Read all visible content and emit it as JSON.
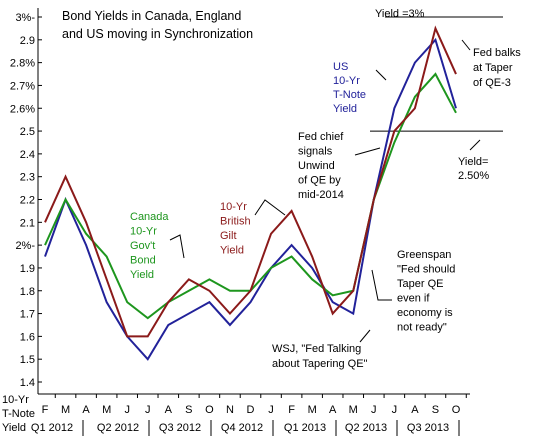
{
  "chart_data": {
    "type": "line",
    "title": [
      "Bond Yields in Canada, England",
      "and US moving in Synchronization"
    ],
    "y_label": [
      "10-Yr",
      "T-Note",
      "Yield"
    ],
    "categories": [
      "F",
      "M",
      "A",
      "M",
      "J",
      "J",
      "A",
      "S",
      "O",
      "N",
      "D",
      "J",
      "F",
      "M",
      "A",
      "M",
      "J",
      "J",
      "A",
      "S",
      "O"
    ],
    "x_groups": [
      "Q1 2012",
      "Q2 2012",
      "Q3 2012",
      "Q4 2012",
      "Q1 2013",
      "Q2 2013",
      "Q3 2013"
    ],
    "series": [
      {
        "name": "US",
        "color": "#22229a",
        "values": [
          1.95,
          2.2,
          2.0,
          1.75,
          1.6,
          1.5,
          1.65,
          1.7,
          1.75,
          1.65,
          1.75,
          1.9,
          2.0,
          1.9,
          1.75,
          1.7,
          2.2,
          2.6,
          2.8,
          2.9,
          2.6
        ]
      },
      {
        "name": "Canada",
        "color": "#1e961e",
        "values": [
          2.0,
          2.2,
          2.05,
          1.95,
          1.75,
          1.68,
          1.75,
          1.8,
          1.85,
          1.8,
          1.8,
          1.9,
          1.95,
          1.85,
          1.78,
          1.8,
          2.2,
          2.45,
          2.65,
          2.75,
          2.58
        ]
      },
      {
        "name": "UK",
        "color": "#8b1a1a",
        "values": [
          2.1,
          2.3,
          2.1,
          1.85,
          1.6,
          1.6,
          1.75,
          1.85,
          1.8,
          1.7,
          1.8,
          2.05,
          2.15,
          1.95,
          1.7,
          1.8,
          2.2,
          2.5,
          2.6,
          2.95,
          2.75
        ]
      }
    ],
    "ylim": [
      1.4,
      3.0
    ],
    "yticks": [
      {
        "value": 3.0,
        "label": "3%-"
      },
      2.9,
      {
        "value": 2.8,
        "label": "2.8%"
      },
      {
        "value": 2.7,
        "label": "2.7%"
      },
      {
        "value": 2.6,
        "label": "2.6%"
      },
      2.5,
      2.4,
      2.3,
      2.2,
      2.1,
      {
        "value": 2.0,
        "label": "2%-"
      },
      1.9,
      1.8,
      1.7,
      1.6,
      1.5,
      1.4
    ],
    "reference_lines": [
      3.0,
      2.5
    ],
    "annotations": [
      [
        "Yield =3%"
      ],
      [
        "US",
        "10-Yr",
        "T-Note",
        "Yield"
      ],
      [
        "Fed balks",
        "at Taper",
        "of QE-3"
      ],
      [
        "Fed chief",
        "signals",
        "Unwind",
        "of QE by",
        "mid-2014"
      ],
      [
        "Yield=",
        "2.50%"
      ],
      [
        "Canada",
        "10-Yr",
        "Gov't",
        "Bond",
        "Yield"
      ],
      [
        "10-Yr",
        "British",
        "Gilt",
        "Yield"
      ],
      [
        "Greenspan",
        "\"Fed should",
        "Taper QE",
        "even if",
        "economy is",
        "not ready\""
      ],
      [
        "WSJ, \"Fed Talking",
        "about Tapering QE\""
      ]
    ]
  }
}
